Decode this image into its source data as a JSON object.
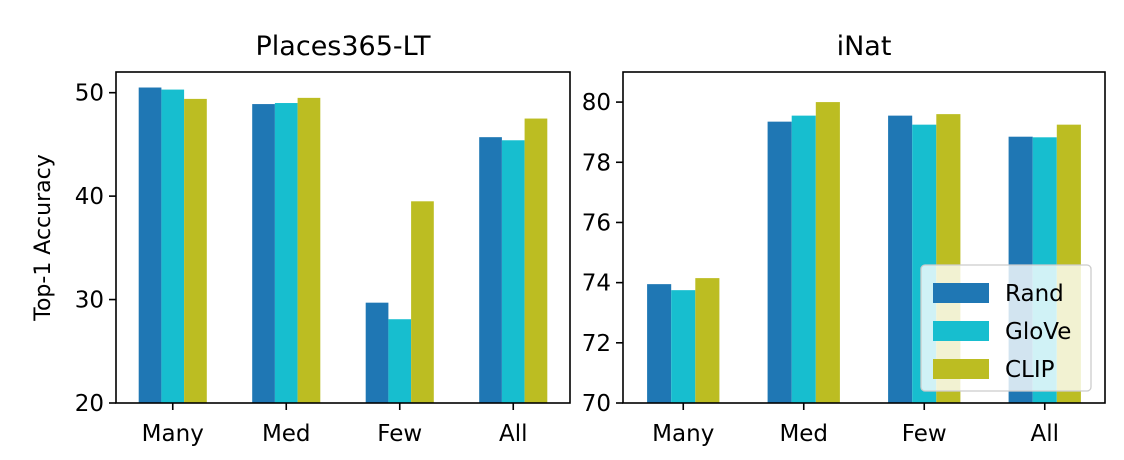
{
  "chart_data": [
    {
      "type": "bar",
      "title": "Places365-LT",
      "xlabel": "",
      "ylabel": "Top-1 Accuracy",
      "categories": [
        "Many",
        "Med",
        "Few",
        "All"
      ],
      "ylim": [
        20,
        52
      ],
      "yticks": [
        20,
        30,
        40,
        50
      ],
      "series": [
        {
          "name": "Rand",
          "color": "#1f77b4",
          "values": [
            50.5,
            48.9,
            29.7,
            45.7
          ]
        },
        {
          "name": "GloVe",
          "color": "#17becf",
          "values": [
            50.3,
            49.0,
            28.1,
            45.4
          ]
        },
        {
          "name": "CLIP",
          "color": "#bcbd22",
          "values": [
            49.4,
            49.5,
            39.5,
            47.5
          ]
        }
      ],
      "legend": false
    },
    {
      "type": "bar",
      "title": "iNat",
      "xlabel": "",
      "ylabel": "",
      "categories": [
        "Many",
        "Med",
        "Few",
        "All"
      ],
      "ylim": [
        70,
        81
      ],
      "yticks": [
        70,
        72,
        74,
        76,
        78,
        80
      ],
      "series": [
        {
          "name": "Rand",
          "color": "#1f77b4",
          "values": [
            73.95,
            79.35,
            79.55,
            78.85
          ]
        },
        {
          "name": "GloVe",
          "color": "#17becf",
          "values": [
            73.75,
            79.55,
            79.25,
            78.83
          ]
        },
        {
          "name": "CLIP",
          "color": "#bcbd22",
          "values": [
            74.15,
            80.0,
            79.6,
            79.25
          ]
        }
      ],
      "legend": true,
      "legend_position": "lower-right"
    }
  ]
}
